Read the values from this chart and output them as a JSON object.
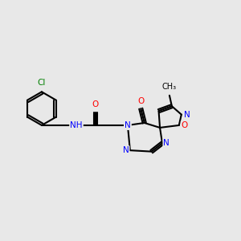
{
  "background_color": "#e8e8e8",
  "bond_color": "#000000",
  "atom_colors": {
    "N": "#0000ff",
    "O": "#ff0000",
    "Cl": "#008000",
    "C": "#000000",
    "H": "#000000"
  },
  "figsize": [
    3.0,
    3.0
  ],
  "dpi": 100
}
